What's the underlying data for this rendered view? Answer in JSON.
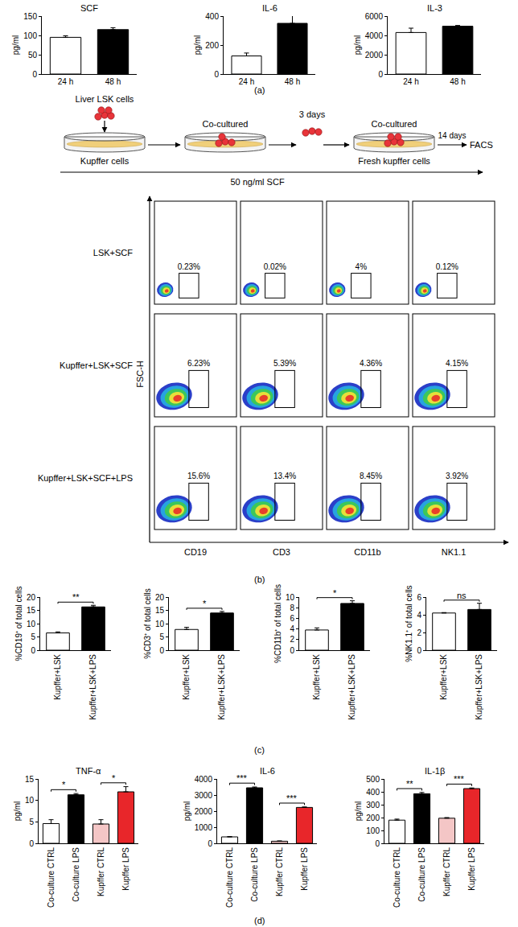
{
  "panel_labels": [
    "(a)",
    "(b)",
    "(c)",
    "(d)"
  ],
  "schematic": {
    "cells_label": "Liver LSK cells",
    "feeder_label": "Kupffer cells",
    "step1": "Co-cultured",
    "interval": "3 days",
    "step2": "Co-cultured",
    "fresh_feeder_label": "Fresh kupffer cells",
    "duration": "14 days",
    "readout": "FACS",
    "medium": "50 ng/ml SCF"
  },
  "flow_cytometry": {
    "y_label": "FSC-H",
    "columns": [
      "CD19",
      "CD3",
      "CD11b",
      "NK1.1"
    ],
    "rows": [
      {
        "label": "LSK+SCF",
        "percentages": [
          "0.23%",
          "0.02%",
          "4%",
          "0.12%"
        ]
      },
      {
        "label": "Kupffer+LSK+SCF",
        "percentages": [
          "6.23%",
          "5.39%",
          "4.36%",
          "4.15%"
        ]
      },
      {
        "label": "Kupffer+LSK+SCF+LPS",
        "percentages": [
          "15.6%",
          "13.4%",
          "8.45%",
          "3.92%"
        ]
      }
    ]
  },
  "chart_data": [
    {
      "type": "bar",
      "title": "SCF",
      "y_label": "pg/ml",
      "categories": [
        "24 h",
        "48 h"
      ],
      "values": [
        95,
        115
      ],
      "errors": [
        4,
        5
      ],
      "colors": [
        "#ffffff",
        "#000000"
      ],
      "ylim": [
        0,
        150
      ],
      "yticks": [
        0,
        50,
        100,
        150
      ]
    },
    {
      "type": "bar",
      "title": "IL-6",
      "y_label": "pg/ml",
      "categories": [
        "24 h",
        "48 h"
      ],
      "values": [
        125,
        350
      ],
      "errors": [
        20,
        55
      ],
      "colors": [
        "#ffffff",
        "#000000"
      ],
      "ylim": [
        0,
        400
      ],
      "yticks": [
        0,
        200,
        400
      ]
    },
    {
      "type": "bar",
      "title": "IL-3",
      "y_label": "pg/ml",
      "categories": [
        "24 h",
        "48 h"
      ],
      "values": [
        4300,
        4950
      ],
      "errors": [
        450,
        80
      ],
      "colors": [
        "#ffffff",
        "#000000"
      ],
      "ylim": [
        0,
        6000
      ],
      "yticks": [
        0,
        2000,
        4000,
        6000
      ]
    },
    {
      "type": "bar",
      "y_label": "%CD19⁺ of total cells",
      "categories": [
        "Kupffer+LSK",
        "Kupffer+LSK+LPS"
      ],
      "values": [
        6.5,
        16.3
      ],
      "errors": [
        0.4,
        0.6
      ],
      "colors": [
        "#ffffff",
        "#000000"
      ],
      "ylim": [
        0,
        20
      ],
      "yticks": [
        0,
        5,
        10,
        15,
        20
      ],
      "significance": [
        {
          "from": 0,
          "to": 1,
          "label": "**"
        }
      ]
    },
    {
      "type": "bar",
      "y_label": "%CD3⁺ of total cells",
      "categories": [
        "Kupffer+LSK",
        "Kupffer+LSK+LPS"
      ],
      "values": [
        7.8,
        14
      ],
      "errors": [
        0.8,
        0.6
      ],
      "colors": [
        "#ffffff",
        "#000000"
      ],
      "ylim": [
        0,
        20
      ],
      "yticks": [
        0,
        5,
        10,
        15,
        20
      ],
      "significance": [
        {
          "from": 0,
          "to": 1,
          "label": "*"
        }
      ]
    },
    {
      "type": "bar",
      "y_label": "%CD11b⁺ of total cells",
      "categories": [
        "Kupffer+LSK",
        "Kupffer+LSK+LPS"
      ],
      "values": [
        3.8,
        8.8
      ],
      "errors": [
        0.4,
        0.5
      ],
      "colors": [
        "#ffffff",
        "#000000"
      ],
      "ylim": [
        0,
        10
      ],
      "yticks": [
        0,
        2,
        4,
        6,
        8,
        10
      ],
      "significance": [
        {
          "from": 0,
          "to": 1,
          "label": "*"
        }
      ]
    },
    {
      "type": "bar",
      "y_label": "%NK1.1⁺ of total cells",
      "categories": [
        "Kupffer+LSK",
        "Kupffer+LSK+LPS"
      ],
      "values": [
        4.2,
        4.6
      ],
      "errors": [
        0.05,
        0.7
      ],
      "colors": [
        "#ffffff",
        "#000000"
      ],
      "ylim": [
        0,
        6
      ],
      "yticks": [
        0,
        2,
        4,
        6
      ],
      "significance": [
        {
          "from": 0,
          "to": 1,
          "label": "ns"
        }
      ]
    },
    {
      "type": "bar",
      "title": "TNF-α",
      "y_label": "pg/ml",
      "categories": [
        "Co-culture CTRL",
        "Co-culture LPS",
        "Kupffer CTRL",
        "Kupffer LPS"
      ],
      "values": [
        4.6,
        11.3,
        4.5,
        12
      ],
      "errors": [
        0.9,
        0.3,
        1,
        1.2
      ],
      "colors": [
        "#ffffff",
        "#000000",
        "#f4c6c6",
        "#e8262a"
      ],
      "ylim": [
        0,
        15
      ],
      "yticks": [
        0,
        5,
        10,
        15
      ],
      "significance": [
        {
          "from": 0,
          "to": 1,
          "label": "*"
        },
        {
          "from": 2,
          "to": 3,
          "label": "*"
        }
      ]
    },
    {
      "type": "bar",
      "title": "IL-6",
      "y_label": "pg/ml",
      "categories": [
        "Co-culture CTRL",
        "Co-culture LPS",
        "Kupffer CTRL",
        "Kupffer LPS"
      ],
      "values": [
        400,
        3450,
        130,
        2230
      ],
      "errors": [
        20,
        50,
        20,
        30
      ],
      "colors": [
        "#ffffff",
        "#000000",
        "#f4c6c6",
        "#e8262a"
      ],
      "ylim": [
        0,
        4000
      ],
      "yticks": [
        0,
        1000,
        2000,
        3000,
        4000
      ],
      "significance": [
        {
          "from": 0,
          "to": 1,
          "label": "***"
        },
        {
          "from": 2,
          "to": 3,
          "label": "***"
        }
      ]
    },
    {
      "type": "bar",
      "title": "IL-1β",
      "y_label": "pg/ml",
      "categories": [
        "Co-culture CTRL",
        "Co-culture LPS",
        "Kupffer CTRL",
        "Kupffer LPS"
      ],
      "values": [
        180,
        385,
        195,
        425
      ],
      "errors": [
        8,
        10,
        5,
        5
      ],
      "colors": [
        "#ffffff",
        "#000000",
        "#f4c6c6",
        "#e8262a"
      ],
      "ylim": [
        0,
        500
      ],
      "yticks": [
        0,
        100,
        200,
        300,
        400,
        500
      ],
      "significance": [
        {
          "from": 0,
          "to": 1,
          "label": "**"
        },
        {
          "from": 2,
          "to": 3,
          "label": "***"
        }
      ]
    }
  ]
}
